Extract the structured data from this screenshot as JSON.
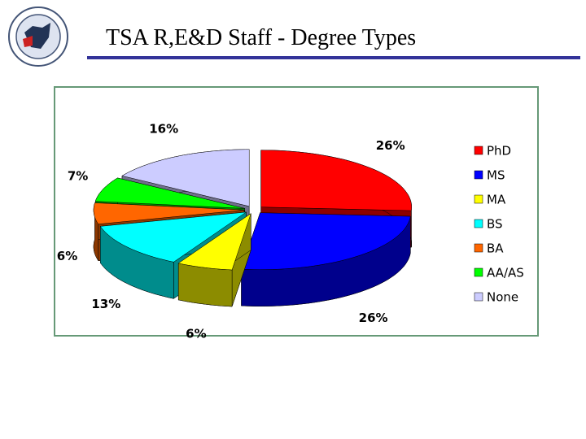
{
  "chart_data": {
    "type": "pie3d",
    "title": "TSA R,E&D Staff - Degree Types",
    "categories": [
      "PhD",
      "MS",
      "MA",
      "BS",
      "BA",
      "AA/AS",
      "None"
    ],
    "values": [
      26,
      26,
      6,
      13,
      6,
      7,
      16
    ],
    "value_labels": [
      "26%",
      "26%",
      "6%",
      "13%",
      "6%",
      "7%",
      "16%"
    ],
    "colors": [
      "#ff0000",
      "#0000ff",
      "#ffff00",
      "#00ffff",
      "#ff6600",
      "#00ff00",
      "#ccccff"
    ],
    "legend": "right"
  }
}
